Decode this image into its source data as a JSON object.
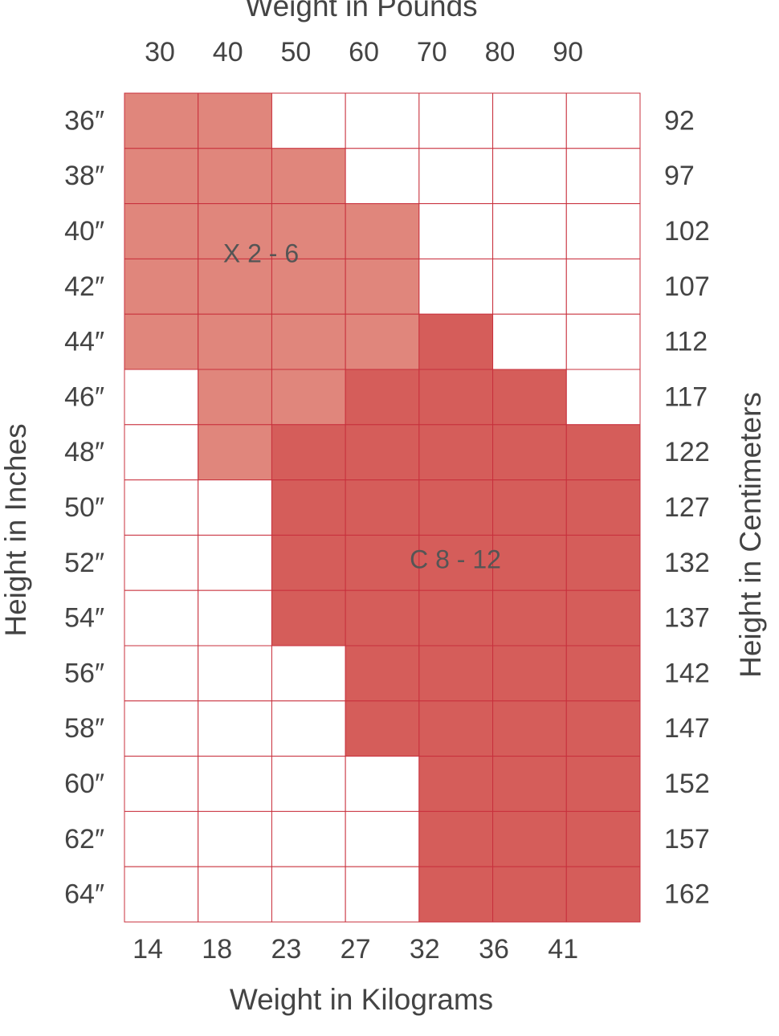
{
  "top_axis": {
    "title": "Weight in Pounds",
    "labels": [
      "30",
      "40",
      "50",
      "60",
      "70",
      "80",
      "90"
    ]
  },
  "bottom_axis": {
    "title": "Weight in Kilograms",
    "labels": [
      "14",
      "18",
      "23",
      "27",
      "32",
      "36",
      "41"
    ]
  },
  "left_axis": {
    "title": "Height in Inches",
    "labels": [
      "36″",
      "38″",
      "40″",
      "42″",
      "44″",
      "46″",
      "48″",
      "50″",
      "52″",
      "54″",
      "56″",
      "58″",
      "60″",
      "62″",
      "64″"
    ]
  },
  "right_axis": {
    "title": "Height in Centimeters",
    "labels": [
      "92",
      "97",
      "102",
      "107",
      "112",
      "117",
      "122",
      "127",
      "132",
      "137",
      "142",
      "147",
      "152",
      "157",
      "162"
    ]
  },
  "regions": [
    {
      "label": "X 2 - 6",
      "color": "#e0867c"
    },
    {
      "label": "C 8 - 12",
      "color": "#d55d5a"
    }
  ],
  "grid_line_color": "#c8303c",
  "grid": [
    [
      0,
      0,
      null,
      null,
      null,
      null,
      null
    ],
    [
      0,
      0,
      0,
      null,
      null,
      null,
      null
    ],
    [
      0,
      0,
      0,
      0,
      null,
      null,
      null
    ],
    [
      0,
      0,
      0,
      0,
      null,
      null,
      null
    ],
    [
      0,
      0,
      0,
      0,
      1,
      null,
      null
    ],
    [
      null,
      0,
      0,
      1,
      1,
      1,
      null
    ],
    [
      null,
      0,
      1,
      1,
      1,
      1,
      1
    ],
    [
      null,
      null,
      1,
      1,
      1,
      1,
      1
    ],
    [
      null,
      null,
      1,
      1,
      1,
      1,
      1
    ],
    [
      null,
      null,
      1,
      1,
      1,
      1,
      1
    ],
    [
      null,
      null,
      null,
      1,
      1,
      1,
      1
    ],
    [
      null,
      null,
      null,
      1,
      1,
      1,
      1
    ],
    [
      null,
      null,
      null,
      null,
      1,
      1,
      1
    ],
    [
      null,
      null,
      null,
      null,
      1,
      1,
      1
    ],
    [
      null,
      null,
      null,
      null,
      1,
      1,
      1
    ]
  ]
}
